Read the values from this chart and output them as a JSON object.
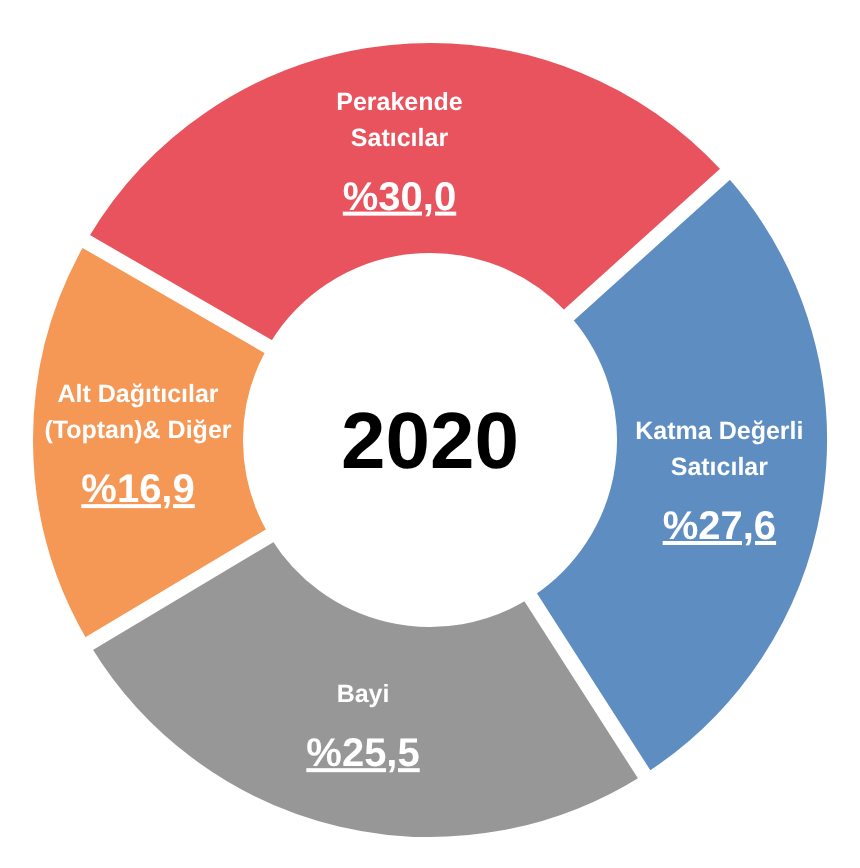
{
  "chart_data": {
    "type": "donut",
    "title": "2020",
    "categories": [
      "Perakende Satıcılar",
      "Katma Değerli Satıcılar",
      "Bayi",
      "Alt Dağıtıcılar (Toptan)& Diğer"
    ],
    "values": [
      30.0,
      27.6,
      25.5,
      16.9
    ],
    "value_labels": [
      "%30,0",
      "%27,6",
      "%25,5",
      "%16,9"
    ],
    "colors": [
      "#e8535e",
      "#5e8dc1",
      "#979797",
      "#f59755"
    ]
  }
}
